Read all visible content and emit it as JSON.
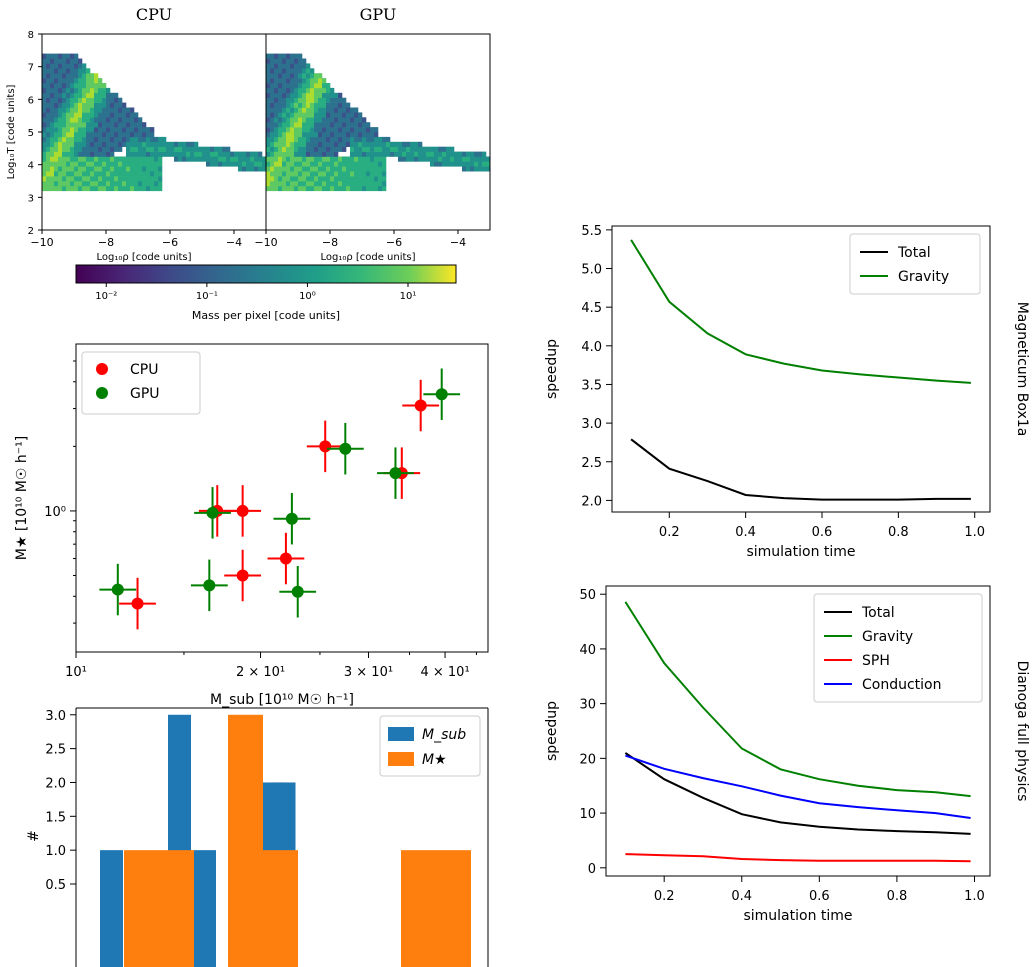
{
  "chart_data": [
    {
      "type": "heatmap",
      "panel": "phase-diagram",
      "titles": [
        "CPU",
        "GPU"
      ],
      "xlabel": "Log₁₀ρ [code units]",
      "ylabel": "Log₁₀T [code units]",
      "xlim": [
        -10,
        -3
      ],
      "ylim": [
        2,
        8
      ],
      "xticks": [
        "−10",
        "−8",
        "−6",
        "−4"
      ],
      "yticks": [
        "2",
        "3",
        "4",
        "5",
        "6",
        "7",
        "8"
      ],
      "colorbar": {
        "label": "Mass per pixel [code units]",
        "scale": "log",
        "range": [
          0.005,
          30
        ],
        "ticks": [
          "10⁻²",
          "10⁻¹",
          "10⁰",
          "10¹"
        ]
      }
    },
    {
      "type": "scatter",
      "panel": "stellar-vs-subhalo-mass",
      "xlabel": "M_sub [10¹⁰ M☉ h⁻¹]",
      "ylabel": "M★ [10¹⁰ M☉ h⁻¹]",
      "xscale": "log",
      "yscale": "log",
      "xlim": [
        10,
        47
      ],
      "ylim": [
        0.22,
        6.0
      ],
      "xticks": [
        "10¹",
        "2 × 10¹",
        "3 × 10¹",
        "4 × 10¹"
      ],
      "yticks": [
        "10⁰"
      ],
      "legend": "top-left",
      "series": [
        {
          "name": "CPU",
          "color": "#ff0000",
          "points": [
            [
              12.6,
              0.37
            ],
            [
              17.0,
              1.0
            ],
            [
              18.7,
              1.0
            ],
            [
              18.7,
              0.5
            ],
            [
              22.0,
              0.6
            ],
            [
              25.5,
              2.0
            ],
            [
              34.0,
              1.5
            ],
            [
              36.5,
              3.1
            ]
          ],
          "xerr": 0.03,
          "yerr": 0.12
        },
        {
          "name": "GPU",
          "color": "#008000",
          "points": [
            [
              11.7,
              0.43
            ],
            [
              16.5,
              0.45
            ],
            [
              16.7,
              0.98
            ],
            [
              22.5,
              0.92
            ],
            [
              23.0,
              0.42
            ],
            [
              27.5,
              1.95
            ],
            [
              33.2,
              1.5
            ],
            [
              39.5,
              3.5
            ]
          ],
          "xerr": 0.03,
          "yerr": 0.12
        }
      ]
    },
    {
      "type": "bar",
      "panel": "mass-histogram",
      "ylabel": "#",
      "yticks": [
        "0.5",
        "1.0",
        "1.5",
        "2.0",
        "2.5",
        "3.0"
      ],
      "ylim": [
        0.5,
        3.1
      ],
      "legend": "top-right",
      "series": [
        {
          "name": "M_sub",
          "color": "#1f77b4",
          "bins": [
            [
              0,
              1
            ],
            [
              2,
              3
            ],
            [
              3,
              1
            ],
            [
              4,
              2
            ],
            [
              5,
              2
            ]
          ]
        },
        {
          "name": "M★",
          "color": "#ff7f0e",
          "bins": [
            [
              1,
              1
            ],
            [
              3,
              3
            ],
            [
              4,
              1
            ],
            [
              7,
              1
            ]
          ]
        }
      ]
    },
    {
      "type": "line",
      "panel": "speedup-magneticum",
      "side_title": "Magneticum Box1a",
      "xlabel": "simulation time",
      "ylabel": "speedup",
      "xlim": [
        0.05,
        1.04
      ],
      "ylim": [
        1.85,
        5.55
      ],
      "xticks": [
        "0.2",
        "0.4",
        "0.6",
        "0.8",
        "1.0"
      ],
      "yticks": [
        "2.0",
        "2.5",
        "3.0",
        "3.5",
        "4.0",
        "4.5",
        "5.0",
        "5.5"
      ],
      "legend": "top-right",
      "x": [
        0.1,
        0.2,
        0.3,
        0.4,
        0.5,
        0.6,
        0.7,
        0.8,
        0.9,
        0.99
      ],
      "series": [
        {
          "name": "Total",
          "color": "#000000",
          "values": [
            2.79,
            2.41,
            2.25,
            2.07,
            2.03,
            2.01,
            2.01,
            2.01,
            2.02,
            2.02
          ]
        },
        {
          "name": "Gravity",
          "color": "#008000",
          "values": [
            5.37,
            4.57,
            4.16,
            3.89,
            3.77,
            3.68,
            3.63,
            3.59,
            3.55,
            3.52
          ]
        }
      ]
    },
    {
      "type": "line",
      "panel": "speedup-dianoga",
      "side_title": "Dianoga full physics",
      "xlabel": "simulation time",
      "ylabel": "speedup",
      "xlim": [
        0.05,
        1.04
      ],
      "ylim": [
        -1.5,
        51.5
      ],
      "xticks": [
        "0.2",
        "0.4",
        "0.6",
        "0.8",
        "1.0"
      ],
      "yticks": [
        "0",
        "10",
        "20",
        "30",
        "40",
        "50"
      ],
      "legend": "top-right",
      "x": [
        0.1,
        0.2,
        0.3,
        0.4,
        0.5,
        0.6,
        0.7,
        0.8,
        0.9,
        0.99
      ],
      "series": [
        {
          "name": "Total",
          "color": "#000000",
          "values": [
            21.0,
            16.2,
            12.8,
            9.8,
            8.3,
            7.5,
            7.0,
            6.7,
            6.5,
            6.2
          ]
        },
        {
          "name": "Gravity",
          "color": "#008000",
          "values": [
            48.6,
            37.4,
            29.3,
            21.8,
            18.0,
            16.2,
            15.0,
            14.2,
            13.8,
            13.1
          ]
        },
        {
          "name": "SPH",
          "color": "#ff0000",
          "values": [
            2.5,
            2.3,
            2.1,
            1.6,
            1.4,
            1.3,
            1.3,
            1.3,
            1.3,
            1.2
          ]
        },
        {
          "name": "Conduction",
          "color": "#0000ff",
          "values": [
            20.5,
            18.1,
            16.4,
            14.9,
            13.2,
            11.8,
            11.1,
            10.5,
            10.0,
            9.1
          ]
        }
      ]
    }
  ]
}
